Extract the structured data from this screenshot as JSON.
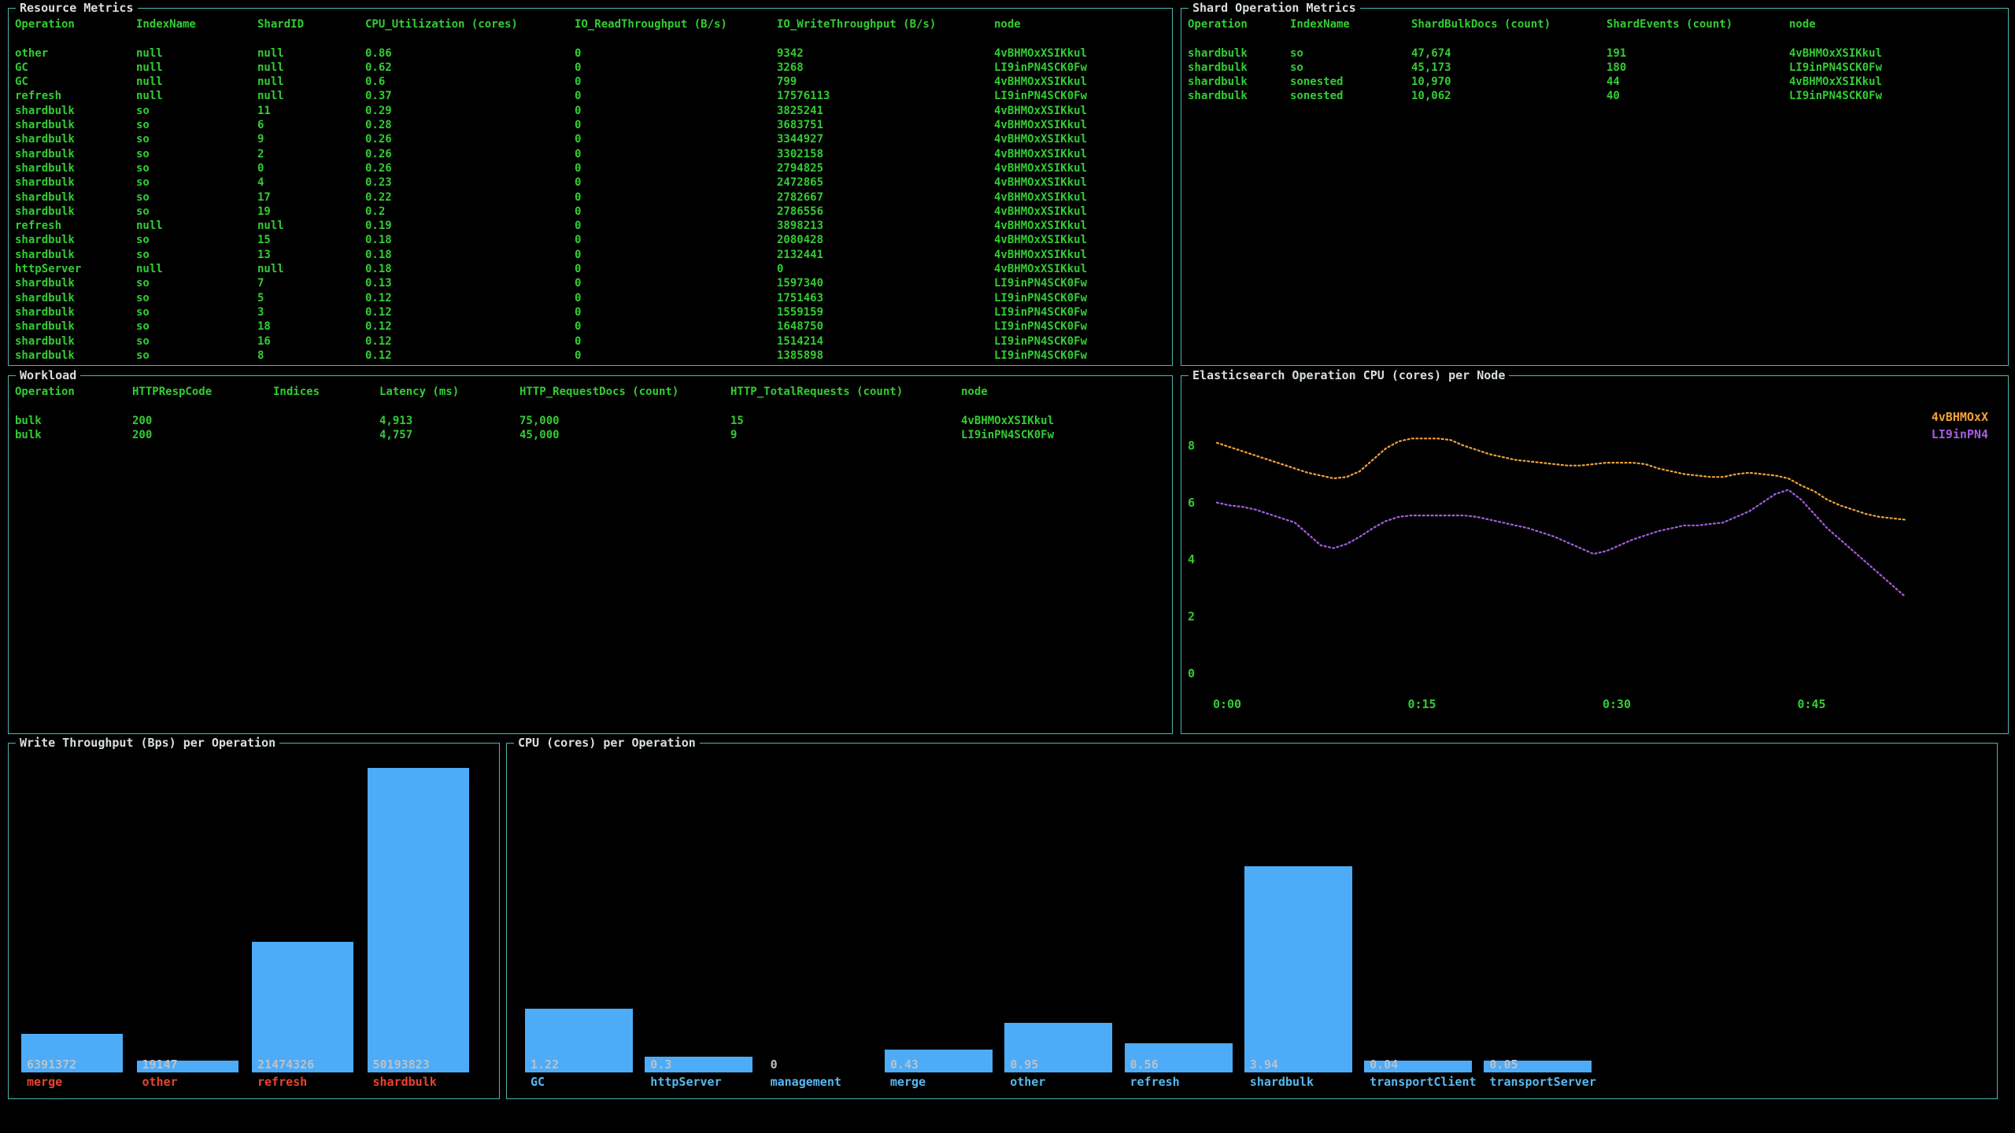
{
  "colors": {
    "background": "#000000",
    "border": "#4db8ae",
    "green": "#33cc33",
    "title": "#d8dee0",
    "bar": "#4dabf7",
    "value-label": "#b9c2ca",
    "red-label": "#e8442e",
    "blue-label": "#58b8f0",
    "orange": "#f0a13c",
    "purple": "#a55de0"
  },
  "panels": {
    "resource_metrics": {
      "title": "Resource Metrics",
      "headers": [
        "Operation",
        "IndexName",
        "ShardID",
        "CPU_Utilization (cores)",
        "IO_ReadThroughput (B/s)",
        "IO_WriteThroughput (B/s)",
        "node"
      ],
      "rows": [
        [
          "other",
          "null",
          "null",
          "0.86",
          "0",
          "9342",
          "4vBHMOxXSIKkul"
        ],
        [
          "GC",
          "null",
          "null",
          "0.62",
          "0",
          "3268",
          "LI9inPN4SCK0Fw"
        ],
        [
          "GC",
          "null",
          "null",
          "0.6",
          "0",
          "799",
          "4vBHMOxXSIKkul"
        ],
        [
          "refresh",
          "null",
          "null",
          "0.37",
          "0",
          "17576113",
          "LI9inPN4SCK0Fw"
        ],
        [
          "shardbulk",
          "so",
          "11",
          "0.29",
          "0",
          "3825241",
          "4vBHMOxXSIKkul"
        ],
        [
          "shardbulk",
          "so",
          "6",
          "0.28",
          "0",
          "3683751",
          "4vBHMOxXSIKkul"
        ],
        [
          "shardbulk",
          "so",
          "9",
          "0.26",
          "0",
          "3344927",
          "4vBHMOxXSIKkul"
        ],
        [
          "shardbulk",
          "so",
          "2",
          "0.26",
          "0",
          "3302158",
          "4vBHMOxXSIKkul"
        ],
        [
          "shardbulk",
          "so",
          "0",
          "0.26",
          "0",
          "2794825",
          "4vBHMOxXSIKkul"
        ],
        [
          "shardbulk",
          "so",
          "4",
          "0.23",
          "0",
          "2472865",
          "4vBHMOxXSIKkul"
        ],
        [
          "shardbulk",
          "so",
          "17",
          "0.22",
          "0",
          "2782667",
          "4vBHMOxXSIKkul"
        ],
        [
          "shardbulk",
          "so",
          "19",
          "0.2",
          "0",
          "2786556",
          "4vBHMOxXSIKkul"
        ],
        [
          "refresh",
          "null",
          "null",
          "0.19",
          "0",
          "3898213",
          "4vBHMOxXSIKkul"
        ],
        [
          "shardbulk",
          "so",
          "15",
          "0.18",
          "0",
          "2080428",
          "4vBHMOxXSIKkul"
        ],
        [
          "shardbulk",
          "so",
          "13",
          "0.18",
          "0",
          "2132441",
          "4vBHMOxXSIKkul"
        ],
        [
          "httpServer",
          "null",
          "null",
          "0.18",
          "0",
          "0",
          "4vBHMOxXSIKkul"
        ],
        [
          "shardbulk",
          "so",
          "7",
          "0.13",
          "0",
          "1597340",
          "LI9inPN4SCK0Fw"
        ],
        [
          "shardbulk",
          "so",
          "5",
          "0.12",
          "0",
          "1751463",
          "LI9inPN4SCK0Fw"
        ],
        [
          "shardbulk",
          "so",
          "3",
          "0.12",
          "0",
          "1559159",
          "LI9inPN4SCK0Fw"
        ],
        [
          "shardbulk",
          "so",
          "18",
          "0.12",
          "0",
          "1648750",
          "LI9inPN4SCK0Fw"
        ],
        [
          "shardbulk",
          "so",
          "16",
          "0.12",
          "0",
          "1514214",
          "LI9inPN4SCK0Fw"
        ],
        [
          "shardbulk",
          "so",
          "8",
          "0.12",
          "0",
          "1385898",
          "LI9inPN4SCK0Fw"
        ]
      ]
    },
    "shard_operation_metrics": {
      "title": "Shard Operation Metrics",
      "headers": [
        "Operation",
        "IndexName",
        "ShardBulkDocs (count)",
        "ShardEvents (count)",
        "node"
      ],
      "rows": [
        [
          "shardbulk",
          "so",
          "47,674",
          "191",
          "4vBHMOxXSIKkul"
        ],
        [
          "shardbulk",
          "so",
          "45,173",
          "180",
          "LI9inPN4SCK0Fw"
        ],
        [
          "shardbulk",
          "sonested",
          "10,970",
          "44",
          "4vBHMOxXSIKkul"
        ],
        [
          "shardbulk",
          "sonested",
          "10,062",
          "40",
          "LI9inPN4SCK0Fw"
        ]
      ]
    },
    "workload": {
      "title": "Workload",
      "headers": [
        "Operation",
        "HTTPRespCode",
        "Indices",
        "Latency (ms)",
        "HTTP_RequestDocs (count)",
        "HTTP_TotalRequests (count)",
        "node"
      ],
      "rows": [
        [
          "bulk",
          "200",
          "",
          "4,913",
          "75,000",
          "15",
          "4vBHMOxXSIKkul"
        ],
        [
          "bulk",
          "200",
          "",
          "4,757",
          "45,000",
          "9",
          "LI9inPN4SCK0Fw"
        ]
      ]
    },
    "es_cpu_chart": {
      "title": "Elasticsearch Operation CPU (cores) per Node"
    },
    "write_throughput": {
      "title": "Write Throughput (Bps) per Operation"
    },
    "cpu_per_operation": {
      "title": "CPU (cores) per Operation"
    }
  },
  "chart_data": [
    {
      "type": "line",
      "title": "Elasticsearch Operation CPU (cores) per Node",
      "yticks": [
        8,
        6,
        4,
        2,
        0
      ],
      "ylim": [
        0,
        9
      ],
      "xticks": [
        "0:00",
        "0:15",
        "0:30",
        "0:45"
      ],
      "xtick_minutes": [
        0,
        15,
        30,
        45
      ],
      "x_start_minute": 0,
      "x_step_minutes": 1,
      "grid": false,
      "legend_position": "top-right",
      "series": [
        {
          "name": "4vBHMOxX",
          "color": "#f0a13c",
          "values": [
            8.1,
            7.95,
            7.8,
            7.65,
            7.5,
            7.35,
            7.2,
            7.05,
            6.95,
            6.85,
            6.9,
            7.1,
            7.5,
            7.9,
            8.15,
            8.25,
            8.25,
            8.25,
            8.2,
            8.0,
            7.85,
            7.7,
            7.6,
            7.5,
            7.45,
            7.4,
            7.35,
            7.3,
            7.3,
            7.35,
            7.4,
            7.4,
            7.4,
            7.35,
            7.2,
            7.1,
            7.0,
            6.95,
            6.9,
            6.9,
            7.0,
            7.05,
            7.0,
            6.95,
            6.85,
            6.6,
            6.4,
            6.1,
            5.9,
            5.75,
            5.6,
            5.5,
            5.45,
            5.4
          ]
        },
        {
          "name": "LI9inPN4",
          "color": "#a55de0",
          "values": [
            6.0,
            5.9,
            5.85,
            5.75,
            5.6,
            5.45,
            5.3,
            4.9,
            4.5,
            4.4,
            4.55,
            4.8,
            5.1,
            5.35,
            5.5,
            5.55,
            5.55,
            5.55,
            5.55,
            5.55,
            5.5,
            5.4,
            5.3,
            5.2,
            5.1,
            4.95,
            4.8,
            4.6,
            4.4,
            4.2,
            4.3,
            4.5,
            4.7,
            4.85,
            5.0,
            5.1,
            5.2,
            5.2,
            5.25,
            5.3,
            5.5,
            5.7,
            6.0,
            6.3,
            6.45,
            6.1,
            5.6,
            5.1,
            4.7,
            4.3,
            3.9,
            3.5,
            3.1,
            2.7
          ]
        }
      ]
    },
    {
      "type": "bar",
      "title": "Write Throughput (Bps) per Operation",
      "categories": [
        "merge",
        "other",
        "refresh",
        "shardbulk"
      ],
      "values": [
        6391372,
        19147,
        21474326,
        50193823
      ],
      "value_labels": [
        "6391372",
        "19147",
        "21474326",
        "50193823"
      ]
    },
    {
      "type": "bar",
      "title": "CPU (cores) per Operation",
      "categories": [
        "GC",
        "httpServer",
        "management",
        "merge",
        "other",
        "refresh",
        "shardbulk",
        "transportClient",
        "transportServer"
      ],
      "values": [
        1.22,
        0.3,
        0,
        0.43,
        0.95,
        0.56,
        3.94,
        0.04,
        0.05
      ],
      "value_labels": [
        "1.22",
        "0.3",
        "0",
        "0.43",
        "0.95",
        "0.56",
        "3.94",
        "0.04",
        "0.05"
      ]
    }
  ]
}
